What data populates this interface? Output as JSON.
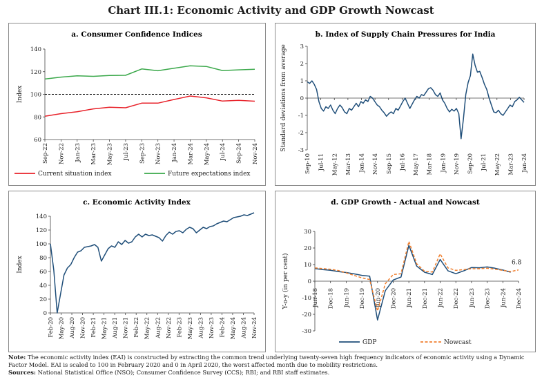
{
  "title": "Chart III.1: Economic Activity and GDP Growth Nowcast",
  "notes": {
    "note_label": "Note:",
    "note_text": "The economic activity index (EAI) is constructed by extracting the common trend underlying twenty-seven high frequency indicators of economic activity using a Dynamic Factor Model. EAI is scaled to 100 in February 2020 and 0 in April 2020, the worst affected month due to mobility restrictions.",
    "sources_label": "Sources:",
    "sources_text": "National Statistical Office (NSO); Consumer Confidence Survey (CCS); RBI; and RBI staff estimates."
  },
  "chart_data": [
    {
      "id": "a",
      "type": "line",
      "title": "a. Consumer Confidence Indices",
      "ylabel": "Index",
      "ylim": [
        60,
        140
      ],
      "yticks": [
        60,
        80,
        100,
        120,
        140
      ],
      "xlabels": [
        "Sep-22",
        "Nov-22",
        "Jan-23",
        "Mar-23",
        "May-23",
        "Jul-23",
        "Sep-23",
        "Nov-23",
        "Jan-24",
        "Mar-24",
        "May-24",
        "Jul-24",
        "Sep-24",
        "Nov-24"
      ],
      "reference_line": 100,
      "legend": [
        "Current situation index",
        "Future expectations index"
      ],
      "colors": [
        "#e8222a",
        "#3aa84a",
        "#000000"
      ],
      "series": [
        {
          "name": "Current situation index",
          "values": [
            80.6,
            82.9,
            84.6,
            87.1,
            88.5,
            88.1,
            92.2,
            92.2,
            95.4,
            98.5,
            96.9,
            94.0,
            94.7,
            93.9
          ]
        },
        {
          "name": "Future expectations index",
          "values": [
            113.5,
            115.2,
            116.3,
            115.9,
            116.6,
            116.8,
            122.4,
            120.8,
            123.0,
            125.2,
            124.6,
            121.0,
            121.6,
            122.1
          ]
        }
      ]
    },
    {
      "id": "b",
      "type": "line",
      "title": "b. Index of Supply Chain Pressures for India",
      "ylabel": "Standard deviations from average",
      "ylim": [
        -3,
        3
      ],
      "yticks": [
        -3,
        -2,
        -1,
        0,
        1,
        2,
        3
      ],
      "xlabels": [
        "Sep-10",
        "Jul-11",
        "May-12",
        "Mar-13",
        "Jan-14",
        "Nov-14",
        "Sep-15",
        "Jul-16",
        "May-17",
        "Mar-18",
        "Jan-19",
        "Nov-19",
        "Sep-20",
        "Jul-21",
        "May-22",
        "Mar-23",
        "Jan-24"
      ],
      "reference_line": 0,
      "colors": [
        "#1f4e79"
      ],
      "series": [
        {
          "name": "",
          "values": [
            0.95,
            0.85,
            1.0,
            0.8,
            0.5,
            -0.2,
            -0.6,
            -0.75,
            -0.5,
            -0.6,
            -0.4,
            -0.7,
            -0.9,
            -0.6,
            -0.4,
            -0.55,
            -0.8,
            -0.9,
            -0.6,
            -0.7,
            -0.5,
            -0.3,
            -0.5,
            -0.2,
            -0.3,
            -0.1,
            -0.2,
            0.1,
            0.0,
            -0.2,
            -0.4,
            -0.5,
            -0.7,
            -0.85,
            -1.05,
            -0.9,
            -0.8,
            -0.9,
            -0.6,
            -0.7,
            -0.45,
            -0.2,
            0.0,
            -0.3,
            -0.6,
            -0.35,
            -0.1,
            0.1,
            0.0,
            0.2,
            0.15,
            0.35,
            0.55,
            0.6,
            0.45,
            0.2,
            0.1,
            0.3,
            -0.1,
            -0.3,
            -0.6,
            -0.8,
            -0.65,
            -0.75,
            -0.6,
            -0.9,
            -2.35,
            -1.2,
            0.2,
            0.9,
            1.3,
            2.55,
            1.9,
            1.5,
            1.55,
            1.2,
            0.8,
            0.5,
            0.0,
            -0.4,
            -0.8,
            -0.85,
            -0.7,
            -0.9,
            -1.0,
            -0.8,
            -0.6,
            -0.4,
            -0.5,
            -0.2,
            -0.1,
            0.05,
            -0.1,
            -0.25
          ]
        }
      ]
    },
    {
      "id": "c",
      "type": "line",
      "title": "c. Economic Activity Index",
      "ylabel": "Index",
      "ylim": [
        0,
        140
      ],
      "yticks": [
        0,
        20,
        40,
        60,
        80,
        100,
        120,
        140
      ],
      "xlabels": [
        "Feb-20",
        "May-20",
        "Aug-20",
        "Nov-20",
        "Feb-21",
        "May-21",
        "Aug-21",
        "Nov-21",
        "Feb-22",
        "May-22",
        "Aug-22",
        "Nov-22",
        "Feb-23",
        "May-23",
        "Aug-23",
        "Nov-23",
        "Feb-24",
        "May-24",
        "Aug-24",
        "Nov-24"
      ],
      "colors": [
        "#1f4e79"
      ],
      "series": [
        {
          "name": "",
          "values": [
            100,
            62,
            0,
            28,
            55,
            65,
            70,
            80,
            88,
            90,
            95,
            96,
            97,
            99,
            95,
            75,
            84,
            93,
            97,
            95,
            103,
            99,
            105,
            101,
            103,
            110,
            114,
            110,
            114,
            112,
            113,
            111,
            109,
            104,
            112,
            117,
            114,
            118,
            119,
            116,
            121,
            124,
            122,
            116,
            120,
            124,
            122,
            125,
            126,
            129,
            131,
            133,
            132,
            135,
            138,
            139,
            140,
            142,
            141,
            143,
            145
          ]
        }
      ]
    },
    {
      "id": "d",
      "type": "line",
      "title": "d. GDP Growth - Actual and Nowcast",
      "ylabel": "Y-o-y (in per cent)",
      "ylim": [
        -30,
        30
      ],
      "yticks": [
        -30,
        -20,
        -10,
        0,
        10,
        20,
        30
      ],
      "xlabels": [
        "Jun-18",
        "Dec-18",
        "Jun-19",
        "Dec-19",
        "Jun-20",
        "Dec-20",
        "Jun-21",
        "Dec-21",
        "Jun-22",
        "Dec-22",
        "Jun-23",
        "Dec-23",
        "Jun-24",
        "Dec-24"
      ],
      "legend": [
        "GDP",
        "Nowcast"
      ],
      "annotation": "6.8",
      "colors": [
        "#1f4e79",
        "#f07f2e"
      ],
      "series": [
        {
          "name": "GDP",
          "values": [
            7.6,
            7.0,
            6.6,
            5.8,
            5.2,
            4.4,
            3.5,
            3.0,
            -23.4,
            -5.7,
            0.7,
            2.5,
            21.6,
            9.1,
            5.4,
            4.0,
            13.1,
            6.2,
            4.5,
            6.2,
            8.2,
            8.1,
            8.6,
            7.8,
            6.7,
            5.4
          ]
        },
        {
          "name": "Nowcast",
          "values": [
            8.0,
            7.6,
            7.2,
            6.4,
            5.0,
            3.5,
            2.0,
            1.0,
            -18.0,
            -1.5,
            4.0,
            4.5,
            24.0,
            10.5,
            6.0,
            5.5,
            16.5,
            8.0,
            6.5,
            7.0,
            7.5,
            7.5,
            7.8,
            7.2,
            6.5,
            5.8,
            6.8
          ]
        }
      ]
    }
  ]
}
